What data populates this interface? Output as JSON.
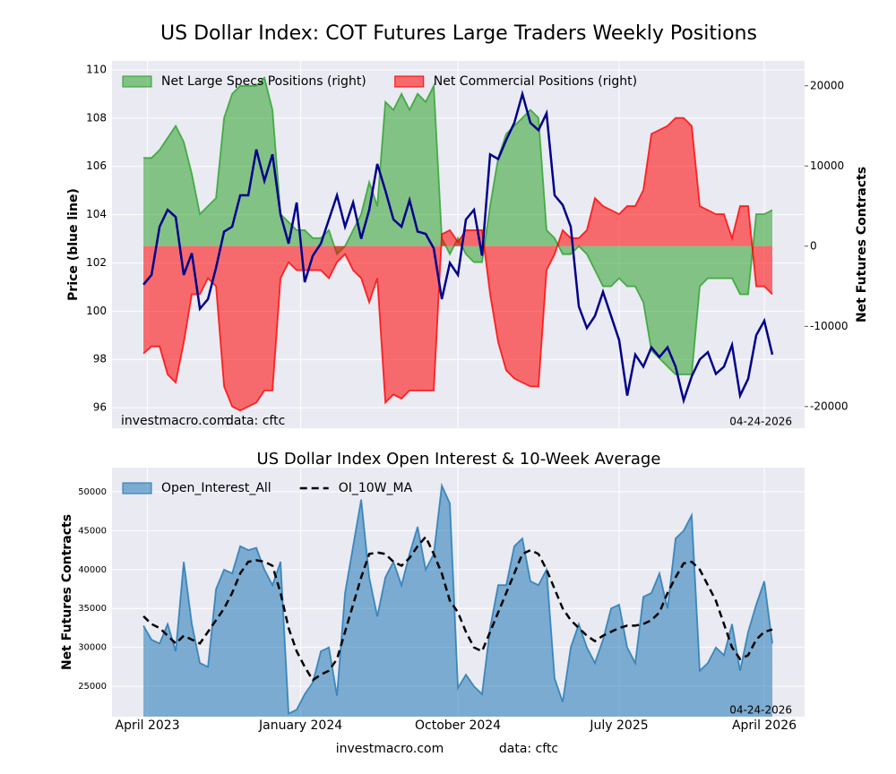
{
  "chart_data": [
    {
      "type": "line",
      "title": "US Dollar Index: COT Futures Large Traders Weekly Positions",
      "ylabel": "Price (blue line)",
      "y2label": "Net Futures Contracts",
      "x": [
        0,
        2,
        4,
        6,
        8,
        10,
        12,
        14,
        16,
        18,
        20,
        22,
        24,
        26,
        28,
        30,
        32,
        34,
        36,
        38,
        40,
        42,
        44,
        46,
        48,
        50,
        52,
        54,
        56,
        58,
        60,
        62,
        64,
        66,
        68,
        70,
        72,
        74,
        76,
        78,
        80,
        82,
        84,
        86,
        88,
        90,
        92,
        94,
        96,
        98,
        100,
        102,
        104,
        106,
        108,
        110,
        112,
        114,
        116,
        118,
        120,
        122,
        124,
        126,
        128,
        130,
        132,
        134,
        136,
        138,
        140,
        142,
        144,
        146,
        148,
        150,
        152,
        154,
        156
      ],
      "xlim": [
        -7.8,
        164
      ],
      "xticks": [
        1,
        39,
        78,
        118,
        154
      ],
      "show_xtick_labels": false,
      "ylim": [
        95.15,
        110.37
      ],
      "yticks": [
        96,
        98,
        100,
        102,
        104,
        106,
        108,
        110
      ],
      "y2lim": [
        -22700,
        23100
      ],
      "y2ticks": [
        -20000,
        -10000,
        0,
        10000,
        20000
      ],
      "grid": true,
      "legend": "upper left",
      "series": [
        {
          "name": "Net Large Specs Positions (right)",
          "color": "#2ca02c",
          "style": "area",
          "axis": "y2",
          "values": [
            11000,
            11000,
            12000,
            13500,
            15000,
            13000,
            9000,
            4000,
            5000,
            6000,
            16000,
            19000,
            20000,
            20000,
            20000,
            21000,
            17000,
            4000,
            3000,
            2000,
            2000,
            1000,
            1000,
            2000,
            -1000,
            0,
            2000,
            4000,
            8000,
            5000,
            18000,
            17000,
            19000,
            17000,
            19000,
            18000,
            20000,
            1000,
            -1000,
            1000,
            -1000,
            -2000,
            -2000,
            5000,
            11000,
            14000,
            15000,
            16000,
            17000,
            16000,
            2000,
            1000,
            -1000,
            -1000,
            0,
            -1000,
            -3000,
            -5000,
            -5000,
            -4000,
            -5000,
            -5000,
            -7000,
            -13000,
            -14000,
            -15000,
            -16000,
            -16000,
            -16000,
            -5000,
            -4000,
            -4000,
            -4000,
            -4000,
            -6000,
            -6000,
            4000,
            4000,
            4500
          ]
        },
        {
          "name": "Net Commercial Positions (right)",
          "color": "#ff0000",
          "style": "area",
          "axis": "y2",
          "values": [
            -13400,
            -12500,
            -12500,
            -16000,
            -17000,
            -12000,
            -6000,
            -6000,
            -4000,
            -5000,
            -17500,
            -20000,
            -20500,
            -20000,
            -19500,
            -18000,
            -18000,
            -4000,
            -2000,
            -3000,
            -3000,
            -3000,
            -3000,
            -4000,
            -2000,
            -1000,
            -3000,
            -4000,
            -7000,
            -4000,
            -19500,
            -18500,
            -19000,
            -18000,
            -18000,
            -18000,
            -18000,
            1500,
            2000,
            500,
            2000,
            2000,
            2000,
            -6000,
            -12000,
            -15500,
            -16500,
            -17000,
            -17500,
            -17500,
            -3000,
            -1000,
            2000,
            1000,
            1000,
            2000,
            6000,
            5000,
            4500,
            4000,
            5000,
            5000,
            7000,
            14000,
            14500,
            15000,
            16000,
            16000,
            15000,
            5000,
            4500,
            4000,
            4000,
            1000,
            5000,
            5000,
            -5000,
            -5000,
            -6000
          ]
        },
        {
          "color": "#00008b",
          "style": "line",
          "values": [
            101.1,
            101.5,
            103.5,
            104.2,
            103.9,
            101.5,
            102.4,
            100.1,
            100.5,
            101.8,
            103.3,
            103.5,
            104.8,
            104.8,
            106.7,
            105.4,
            106.5,
            104.0,
            102.8,
            104.5,
            101.2,
            102.3,
            102.8,
            103.8,
            104.8,
            103.5,
            104.5,
            103.0,
            104.2,
            106.1,
            105.0,
            103.8,
            103.5,
            104.6,
            103.3,
            103.2,
            102.6,
            100.5,
            102.0,
            101.5,
            103.8,
            104.2,
            102.3,
            106.5,
            106.3,
            107.1,
            107.8,
            109.0,
            107.8,
            107.5,
            108.2,
            104.8,
            104.4,
            103.5,
            100.2,
            99.3,
            99.8,
            100.8,
            99.8,
            98.8,
            96.5,
            98.2,
            97.7,
            98.5,
            98.1,
            98.5,
            97.7,
            96.3,
            97.3,
            98.0,
            98.3,
            97.4,
            97.7,
            98.6,
            96.5,
            97.2,
            99.0,
            99.6,
            98.2
          ]
        }
      ],
      "source": "investmacro.com",
      "data_note": "data: cftc",
      "date": "04-24-2026"
    },
    {
      "type": "line",
      "title": "US Dollar Index Open Interest & 10-Week Average",
      "ylabel": "Net Futures Contracts",
      "x": [
        0,
        2,
        4,
        6,
        8,
        10,
        12,
        14,
        16,
        18,
        20,
        22,
        24,
        26,
        28,
        30,
        32,
        34,
        36,
        38,
        40,
        42,
        44,
        46,
        48,
        50,
        52,
        54,
        56,
        58,
        60,
        62,
        64,
        66,
        68,
        70,
        72,
        74,
        76,
        78,
        80,
        82,
        84,
        86,
        88,
        90,
        92,
        94,
        96,
        98,
        100,
        102,
        104,
        106,
        108,
        110,
        112,
        114,
        116,
        118,
        120,
        122,
        124,
        126,
        128,
        130,
        132,
        134,
        136,
        138,
        140,
        142,
        144,
        146,
        148,
        150,
        152,
        154,
        156
      ],
      "xlim": [
        -7.8,
        164
      ],
      "xticks": [
        {
          "value": 1,
          "label": "April 2023"
        },
        {
          "value": 39,
          "label": "January 2024"
        },
        {
          "value": 78,
          "label": "October 2024"
        },
        {
          "value": 118,
          "label": "July 2025"
        },
        {
          "value": 154,
          "label": "April 2026"
        }
      ],
      "show_xtick_labels": true,
      "ylim": [
        21100,
        53100
      ],
      "yticks": [
        25000,
        30000,
        35000,
        40000,
        45000,
        50000
      ],
      "grid": true,
      "legend": "upper left",
      "series": [
        {
          "name": "Open_Interest_All",
          "color": "#1f77b4",
          "style": "area",
          "values": [
            32800,
            31000,
            30500,
            33000,
            29500,
            41000,
            33000,
            28000,
            27500,
            37500,
            40000,
            39500,
            43000,
            42500,
            42800,
            40000,
            38000,
            41000,
            21500,
            22000,
            24000,
            25500,
            29500,
            30000,
            23800,
            37000,
            43000,
            49000,
            39000,
            34000,
            39000,
            41000,
            38000,
            42000,
            45500,
            40000,
            42000,
            50800,
            48500,
            24800,
            26500,
            25000,
            24000,
            32500,
            38000,
            38000,
            43000,
            44000,
            38500,
            38000,
            40000,
            26000,
            23000,
            30000,
            33000,
            30000,
            28000,
            31000,
            35000,
            35500,
            30000,
            28000,
            36500,
            37000,
            39500,
            35000,
            44000,
            45000,
            47000,
            27000,
            28000,
            30000,
            29000,
            33000,
            27000,
            32000,
            35500,
            38500,
            30500
          ]
        },
        {
          "name": "OI_10W_MA",
          "color": "#000000",
          "style": "line",
          "dashed": true,
          "values": [
            34000,
            33000,
            32500,
            31500,
            30500,
            31500,
            31000,
            30500,
            32000,
            33500,
            35000,
            37000,
            39500,
            41000,
            41200,
            41000,
            40500,
            37000,
            32500,
            29500,
            27500,
            25800,
            26500,
            27000,
            28500,
            32000,
            35500,
            39000,
            42000,
            42200,
            42000,
            41000,
            40500,
            41500,
            43000,
            44200,
            42000,
            39500,
            36000,
            34500,
            32000,
            30000,
            29500,
            32000,
            34500,
            37000,
            39500,
            42000,
            42500,
            42000,
            40000,
            37500,
            35000,
            33500,
            32500,
            31500,
            30800,
            31500,
            32000,
            32500,
            32800,
            32800,
            33000,
            33500,
            34500,
            37000,
            39000,
            40800,
            41000,
            40000,
            38000,
            36000,
            33000,
            30000,
            28500,
            29000,
            31000,
            32000,
            32300
          ]
        }
      ],
      "date": "04-24-2026"
    }
  ],
  "footer": {
    "site": "investmacro.com",
    "data": "data: cftc"
  }
}
